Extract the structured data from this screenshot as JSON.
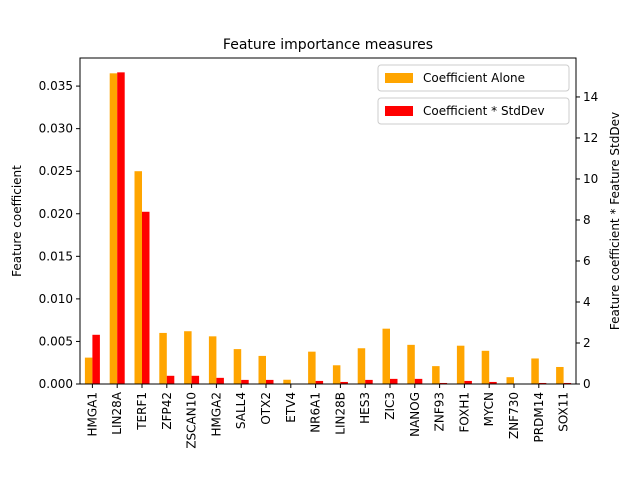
{
  "chart_data": {
    "type": "bar",
    "title": "Feature importance measures",
    "ylabel_left": "Feature coefficient",
    "ylabel_right": "Feature coefficient * Feature StdDev",
    "categories": [
      "HMGA1",
      "LIN28A",
      "TERF1",
      "ZFP42",
      "ZSCAN10",
      "HMGA2",
      "SALL4",
      "OTX2",
      "ETV4",
      "NR6A1",
      "LIN28B",
      "HES3",
      "ZIC3",
      "NANOG",
      "ZNF93",
      "FOXH1",
      "MYCN",
      "ZNF730",
      "PRDM14",
      "SOX11"
    ],
    "ylim_left": [
      0,
      0.0383
    ],
    "ylim_right": [
      0,
      15.9
    ],
    "yticks_left": [
      "0.000",
      "0.005",
      "0.010",
      "0.015",
      "0.020",
      "0.025",
      "0.030",
      "0.035"
    ],
    "yticks_right": [
      "0",
      "2",
      "4",
      "6",
      "8",
      "10",
      "12",
      "14"
    ],
    "series": [
      {
        "name": "Coefficient Alone",
        "axis": "left",
        "color": "#ffa500",
        "values": [
          0.0031,
          0.0365,
          0.025,
          0.006,
          0.0062,
          0.0056,
          0.0041,
          0.0033,
          0.0005,
          0.0038,
          0.0022,
          0.0042,
          0.0065,
          0.0046,
          0.0021,
          0.0045,
          0.0039,
          0.0008,
          0.003,
          0.002
        ]
      },
      {
        "name": "Coefficient * StdDev",
        "axis": "right",
        "color": "#ff0000",
        "values": [
          2.4,
          15.2,
          8.4,
          0.4,
          0.4,
          0.3,
          0.2,
          0.2,
          0.02,
          0.15,
          0.1,
          0.2,
          0.25,
          0.25,
          0.05,
          0.15,
          0.1,
          0.02,
          0.05,
          0.05
        ]
      }
    ],
    "legend_location": "top-right",
    "grid": false
  }
}
